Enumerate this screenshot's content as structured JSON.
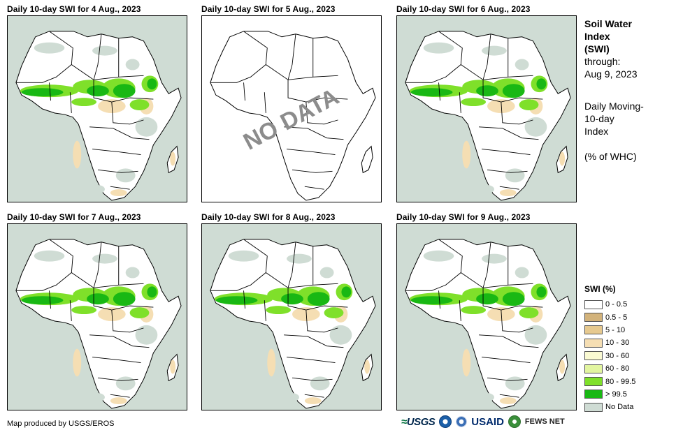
{
  "panels": [
    {
      "title": "Daily 10-day  SWI for 4 Aug., 2023",
      "has_data": true
    },
    {
      "title": "Daily 10-day  SWI for 5 Aug., 2023",
      "has_data": false,
      "overlay": "NO DATA"
    },
    {
      "title": "Daily 10-day  SWI for 6 Aug., 2023",
      "has_data": true
    },
    {
      "title": "Daily 10-day  SWI for 7 Aug., 2023",
      "has_data": true
    },
    {
      "title": "Daily 10-day  SWI for 8 Aug., 2023",
      "has_data": true
    },
    {
      "title": "Daily 10-day  SWI for 9 Aug., 2023",
      "has_data": true
    }
  ],
  "side": {
    "title_line1": "Soil Water",
    "title_line2": "Index",
    "title_line3": "(SWI)",
    "through_label": "through:",
    "through_date": "Aug 9, 2023",
    "desc_line1": "Daily Moving-",
    "desc_line2": "10-day",
    "desc_line3": "Index",
    "units": "(% of WHC)"
  },
  "legend": {
    "title": "SWI (%)",
    "items": [
      {
        "label": "0 - 0.5",
        "color": "#ffffff"
      },
      {
        "label": "0.5 - 5",
        "color": "#d2b27a"
      },
      {
        "label": "5 - 10",
        "color": "#e6c98f"
      },
      {
        "label": "10 - 30",
        "color": "#f5deb3"
      },
      {
        "label": "30 - 60",
        "color": "#fafad2"
      },
      {
        "label": "60 - 80",
        "color": "#e2f5a0"
      },
      {
        "label": "80 - 99.5",
        "color": "#7fe02a"
      },
      {
        "label": "> 99.5",
        "color": "#19b814"
      },
      {
        "label": "No Data",
        "color": "#cfdcd4"
      }
    ]
  },
  "footer": {
    "credit": "Map produced by USGS/EROS"
  },
  "logos": {
    "usgs": "USGS",
    "usaid": "USAID",
    "fews": "FEWS NET"
  },
  "colors": {
    "water": "#cfdcd4",
    "land": "#ffffff",
    "green_high": "#19b814",
    "green_mid": "#7fe02a",
    "tan": "#f5deb3",
    "overlay_text": "#8c8c8c"
  }
}
